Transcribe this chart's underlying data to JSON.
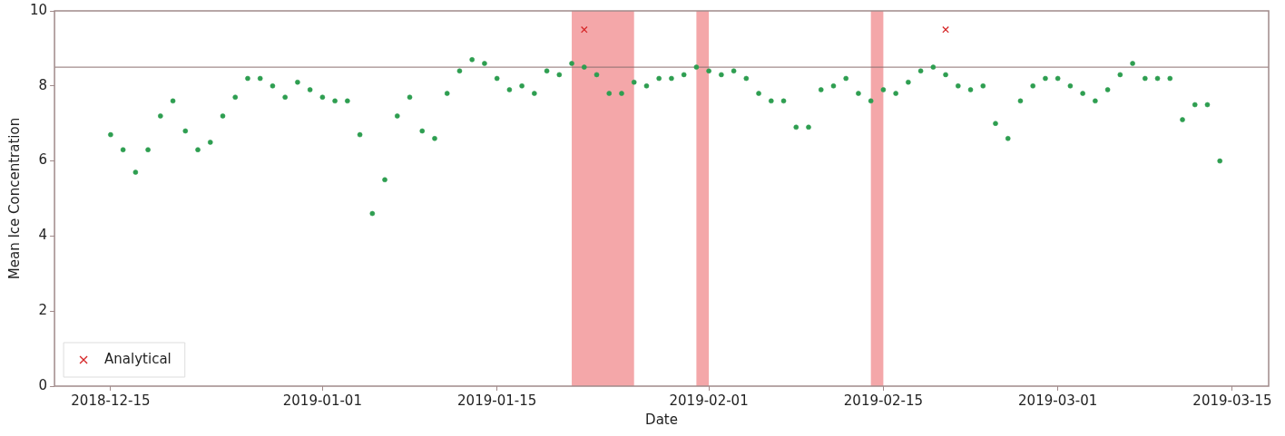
{
  "chart_data": {
    "type": "scatter",
    "xlabel": "Date",
    "ylabel": "Mean Ice Concentration",
    "x": [
      "2018-12-15",
      "2018-12-16",
      "2018-12-17",
      "2018-12-18",
      "2018-12-19",
      "2018-12-20",
      "2018-12-21",
      "2018-12-22",
      "2018-12-23",
      "2018-12-24",
      "2018-12-25",
      "2018-12-26",
      "2018-12-27",
      "2018-12-28",
      "2018-12-29",
      "2018-12-30",
      "2018-12-31",
      "2019-01-01",
      "2019-01-02",
      "2019-01-03",
      "2019-01-04",
      "2019-01-05",
      "2019-01-06",
      "2019-01-07",
      "2019-01-08",
      "2019-01-09",
      "2019-01-10",
      "2019-01-11",
      "2019-01-12",
      "2019-01-13",
      "2019-01-14",
      "2019-01-15",
      "2019-01-16",
      "2019-01-17",
      "2019-01-18",
      "2019-01-19",
      "2019-01-20",
      "2019-01-21",
      "2019-01-22",
      "2019-01-23",
      "2019-01-24",
      "2019-01-25",
      "2019-01-26",
      "2019-01-27",
      "2019-01-28",
      "2019-01-29",
      "2019-01-30",
      "2019-01-31",
      "2019-02-01",
      "2019-02-02",
      "2019-02-03",
      "2019-02-04",
      "2019-02-05",
      "2019-02-06",
      "2019-02-07",
      "2019-02-08",
      "2019-02-09",
      "2019-02-10",
      "2019-02-11",
      "2019-02-12",
      "2019-02-13",
      "2019-02-14",
      "2019-02-15",
      "2019-02-16",
      "2019-02-17",
      "2019-02-18",
      "2019-02-19",
      "2019-02-20",
      "2019-02-21",
      "2019-02-22",
      "2019-02-23",
      "2019-02-24",
      "2019-02-25",
      "2019-02-26",
      "2019-02-27",
      "2019-02-28",
      "2019-03-01",
      "2019-03-02",
      "2019-03-03",
      "2019-03-04",
      "2019-03-05",
      "2019-03-06",
      "2019-03-07",
      "2019-03-08",
      "2019-03-09",
      "2019-03-10",
      "2019-03-11",
      "2019-03-12",
      "2019-03-13",
      "2019-03-14"
    ],
    "series": [
      {
        "color": "#2e9e50",
        "marker": "circle",
        "values": [
          6.7,
          6.3,
          5.7,
          6.3,
          7.2,
          7.6,
          6.8,
          6.3,
          6.5,
          7.2,
          7.7,
          8.2,
          8.2,
          8.0,
          7.7,
          8.1,
          7.9,
          7.7,
          7.6,
          7.6,
          6.7,
          4.6,
          5.5,
          7.2,
          7.7,
          6.8,
          6.6,
          7.8,
          8.4,
          8.7,
          8.6,
          8.2,
          7.9,
          8.0,
          7.8,
          8.4,
          8.3,
          8.6,
          8.5,
          8.3,
          7.8,
          7.8,
          8.1,
          8.0,
          8.2,
          8.2,
          8.3,
          8.5,
          8.4,
          8.3,
          8.4,
          8.2,
          7.8,
          7.6,
          7.6,
          6.9,
          6.9,
          7.9,
          8.0,
          8.2,
          7.8,
          7.6,
          7.9,
          7.8,
          8.1,
          8.4,
          8.5,
          8.3,
          8.0,
          7.9,
          8.0,
          7.0,
          6.6,
          7.6,
          8.0,
          8.2,
          8.2,
          8.0,
          7.8,
          7.6,
          7.9,
          8.3,
          8.6,
          8.2,
          8.2,
          8.2,
          7.1,
          7.5,
          7.5,
          6.0
        ]
      },
      {
        "name": "Analytical",
        "color": "#d62728",
        "marker": "cross",
        "x": [
          "2019-01-22",
          "2019-02-20"
        ],
        "values": [
          9.5,
          9.5
        ]
      }
    ],
    "xlim": [
      "2018-12-10T12:00",
      "2019-03-17T22:00"
    ],
    "xticks": [
      "2018-12-15",
      "2019-01-01",
      "2019-01-15",
      "2019-02-01",
      "2019-02-15",
      "2019-03-01",
      "2019-03-15"
    ],
    "ylim": [
      0,
      10
    ],
    "yticks": [
      0,
      2,
      4,
      6,
      8,
      10
    ],
    "ref_lines": [
      {
        "axis": "y",
        "value": 8.5,
        "color": "#8c7070"
      }
    ],
    "bands": [
      {
        "axis": "x",
        "from": "2019-01-21",
        "to": "2019-01-26",
        "color": "#f4a7a9"
      },
      {
        "axis": "x",
        "from": "2019-01-31",
        "to": "2019-02-01",
        "color": "#f4a7a9"
      },
      {
        "axis": "x",
        "from": "2019-02-14",
        "to": "2019-02-15",
        "color": "#f4a7a9"
      }
    ],
    "legend": "bottom left",
    "grid": false
  }
}
